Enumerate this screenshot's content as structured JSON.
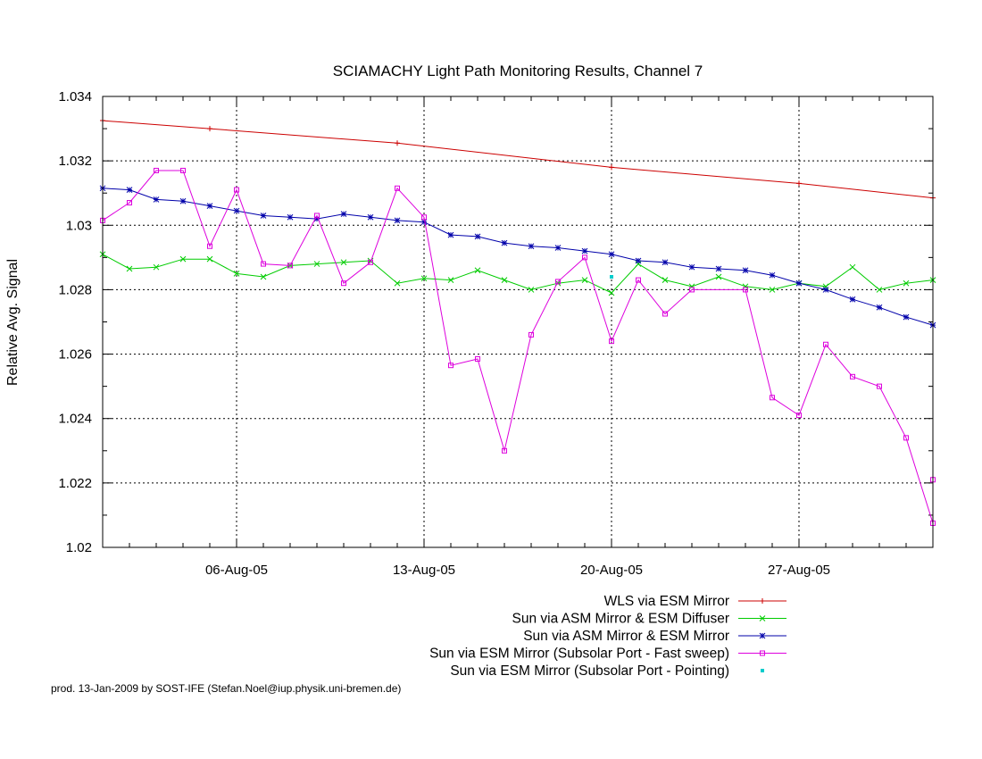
{
  "chart_data": {
    "type": "line",
    "title": "SCIAMACHY Light Path Monitoring Results, Channel 7",
    "xlabel": "",
    "ylabel": "Relative Avg. Signal",
    "xlim": [
      "2005-08-01",
      "2005-09-01"
    ],
    "ylim": [
      1.02,
      1.034
    ],
    "x_ticks": [
      "06-Aug-05",
      "13-Aug-05",
      "20-Aug-05",
      "27-Aug-05"
    ],
    "x_tick_dates": [
      "2005-08-06",
      "2005-08-13",
      "2005-08-20",
      "2005-08-27"
    ],
    "y_ticks": [
      "1.02",
      "1.022",
      "1.024",
      "1.026",
      "1.028",
      "1.03",
      "1.032",
      "1.034"
    ],
    "grid": true,
    "legend_position": "bottom",
    "series": [
      {
        "name": "WLS via ESM Mirror",
        "color": "#cc0000",
        "marker": "plus",
        "points": [
          [
            "2005-08-01",
            1.03325
          ],
          [
            "2005-08-05",
            1.033
          ],
          [
            "2005-08-12",
            1.03255
          ],
          [
            "2005-08-20",
            1.0318
          ],
          [
            "2005-08-27",
            1.0313
          ],
          [
            "2005-09-01",
            1.03085
          ]
        ]
      },
      {
        "name": "Sun via ASM Mirror & ESM Diffuser",
        "color": "#00cc00",
        "marker": "x",
        "points": [
          [
            "2005-08-01",
            1.0291
          ],
          [
            "2005-08-02",
            1.02865
          ],
          [
            "2005-08-03",
            1.0287
          ],
          [
            "2005-08-04",
            1.02895
          ],
          [
            "2005-08-05",
            1.02895
          ],
          [
            "2005-08-06",
            1.0285
          ],
          [
            "2005-08-07",
            1.0284
          ],
          [
            "2005-08-08",
            1.02875
          ],
          [
            "2005-08-09",
            1.0288
          ],
          [
            "2005-08-10",
            1.02885
          ],
          [
            "2005-08-11",
            1.0289
          ],
          [
            "2005-08-12",
            1.0282
          ],
          [
            "2005-08-13",
            1.02835
          ],
          [
            "2005-08-14",
            1.0283
          ],
          [
            "2005-08-15",
            1.0286
          ],
          [
            "2005-08-16",
            1.0283
          ],
          [
            "2005-08-17",
            1.028
          ],
          [
            "2005-08-18",
            1.0282
          ],
          [
            "2005-08-19",
            1.0283
          ],
          [
            "2005-08-20",
            1.0279
          ],
          [
            "2005-08-21",
            1.0288
          ],
          [
            "2005-08-22",
            1.0283
          ],
          [
            "2005-08-23",
            1.0281
          ],
          [
            "2005-08-24",
            1.0284
          ],
          [
            "2005-08-25",
            1.0281
          ],
          [
            "2005-08-26",
            1.028
          ],
          [
            "2005-08-27",
            1.0282
          ],
          [
            "2005-08-28",
            1.0281
          ],
          [
            "2005-08-29",
            1.0287
          ],
          [
            "2005-08-30",
            1.028
          ],
          [
            "2005-08-31",
            1.0282
          ],
          [
            "2005-09-01",
            1.0283
          ]
        ]
      },
      {
        "name": "Sun via ASM Mirror & ESM Mirror",
        "color": "#0000aa",
        "marker": "star",
        "points": [
          [
            "2005-08-01",
            1.03115
          ],
          [
            "2005-08-02",
            1.0311
          ],
          [
            "2005-08-03",
            1.0308
          ],
          [
            "2005-08-04",
            1.03075
          ],
          [
            "2005-08-05",
            1.0306
          ],
          [
            "2005-08-06",
            1.03045
          ],
          [
            "2005-08-07",
            1.0303
          ],
          [
            "2005-08-08",
            1.03025
          ],
          [
            "2005-08-09",
            1.0302
          ],
          [
            "2005-08-10",
            1.03035
          ],
          [
            "2005-08-11",
            1.03025
          ],
          [
            "2005-08-12",
            1.03015
          ],
          [
            "2005-08-13",
            1.0301
          ],
          [
            "2005-08-14",
            1.0297
          ],
          [
            "2005-08-15",
            1.02965
          ],
          [
            "2005-08-16",
            1.02945
          ],
          [
            "2005-08-17",
            1.02935
          ],
          [
            "2005-08-18",
            1.0293
          ],
          [
            "2005-08-19",
            1.0292
          ],
          [
            "2005-08-20",
            1.0291
          ],
          [
            "2005-08-21",
            1.0289
          ],
          [
            "2005-08-22",
            1.02885
          ],
          [
            "2005-08-23",
            1.0287
          ],
          [
            "2005-08-24",
            1.02865
          ],
          [
            "2005-08-25",
            1.0286
          ],
          [
            "2005-08-26",
            1.02845
          ],
          [
            "2005-08-27",
            1.0282
          ],
          [
            "2005-08-28",
            1.028
          ],
          [
            "2005-08-29",
            1.0277
          ],
          [
            "2005-08-30",
            1.02745
          ],
          [
            "2005-08-31",
            1.02715
          ],
          [
            "2005-09-01",
            1.0269
          ]
        ]
      },
      {
        "name": "Sun via ESM Mirror (Subsolar Port - Fast sweep)",
        "color": "#dd00dd",
        "marker": "square",
        "points": [
          [
            "2005-08-01",
            1.03015
          ],
          [
            "2005-08-02",
            1.0307
          ],
          [
            "2005-08-03",
            1.0317
          ],
          [
            "2005-08-04",
            1.0317
          ],
          [
            "2005-08-05",
            1.02935
          ],
          [
            "2005-08-06",
            1.0311
          ],
          [
            "2005-08-07",
            1.0288
          ],
          [
            "2005-08-08",
            1.02875
          ],
          [
            "2005-08-09",
            1.0303
          ],
          [
            "2005-08-10",
            1.0282
          ],
          [
            "2005-08-11",
            1.02885
          ],
          [
            "2005-08-12",
            1.03115
          ],
          [
            "2005-08-13",
            1.03025
          ],
          [
            "2005-08-14",
            1.02565
          ],
          [
            "2005-08-15",
            1.02585
          ],
          [
            "2005-08-16",
            1.023
          ],
          [
            "2005-08-17",
            1.0266
          ],
          [
            "2005-08-18",
            1.02825
          ],
          [
            "2005-08-19",
            1.029
          ],
          [
            "2005-08-20",
            1.0264
          ],
          [
            "2005-08-21",
            1.0283
          ],
          [
            "2005-08-22",
            1.02725
          ],
          [
            "2005-08-23",
            1.028
          ],
          [
            "2005-08-25",
            1.028
          ],
          [
            "2005-08-26",
            1.02465
          ],
          [
            "2005-08-27",
            1.0241
          ],
          [
            "2005-08-28",
            1.0263
          ],
          [
            "2005-08-29",
            1.0253
          ],
          [
            "2005-08-30",
            1.025
          ],
          [
            "2005-08-31",
            1.0234
          ],
          [
            "2005-09-01",
            1.02075
          ],
          [
            "2005-09-01",
            1.0221
          ]
        ]
      },
      {
        "name": "Sun via ESM Mirror (Subsolar Port - Pointing)",
        "color": "#00cccc",
        "marker": "dot",
        "points": [
          [
            "2005-08-20",
            1.0284
          ]
        ]
      }
    ]
  },
  "footer": {
    "credit": "prod. 13-Jan-2009 by SOST-IFE (Stefan.Noel@iup.physik.uni-bremen.de)"
  }
}
